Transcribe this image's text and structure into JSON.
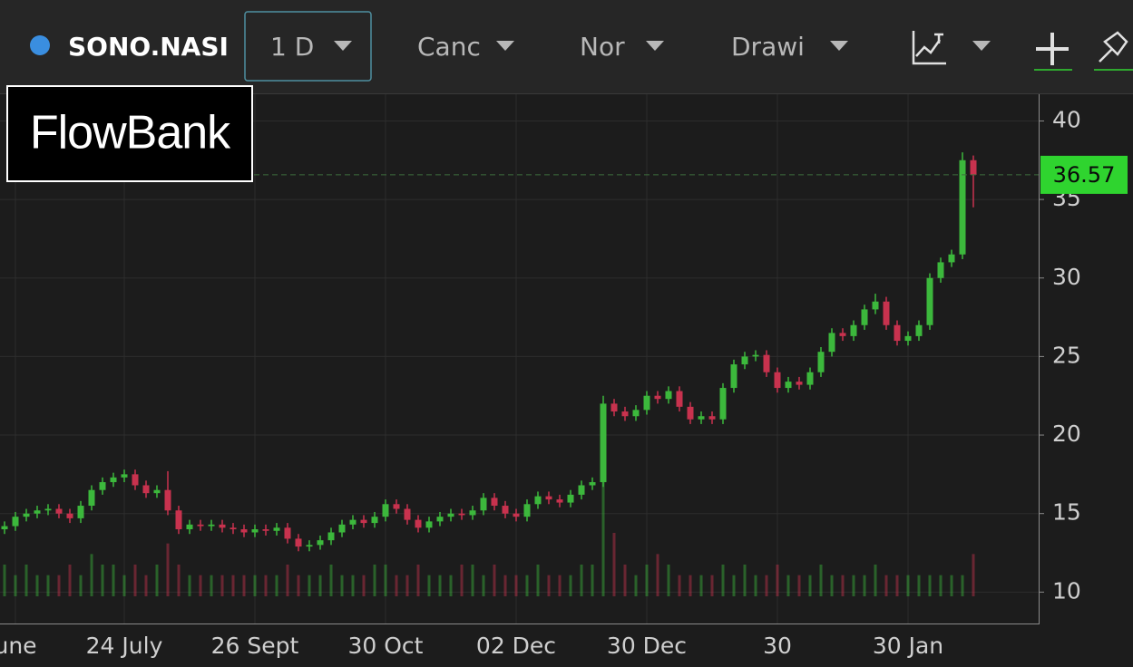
{
  "toolbar": {
    "symbol": "SONO.NASI",
    "interval": "1 D",
    "chart_style": "Canc",
    "scale_mode": "Nor",
    "drawings": "Drawi"
  },
  "logo": "FlowBank",
  "chart_data": {
    "type": "candlestick",
    "categories": [
      null,
      "une",
      null,
      null,
      null,
      null,
      null,
      null,
      null,
      null,
      null,
      "24 July",
      null,
      null,
      null,
      null,
      null,
      null,
      null,
      null,
      null,
      null,
      null,
      "26 Sept",
      null,
      null,
      null,
      null,
      null,
      null,
      null,
      null,
      null,
      null,
      null,
      "30 Oct",
      null,
      null,
      null,
      null,
      null,
      null,
      null,
      null,
      null,
      null,
      null,
      "02 Dec",
      null,
      null,
      null,
      null,
      null,
      null,
      null,
      null,
      null,
      null,
      null,
      "30 Dec",
      null,
      null,
      null,
      null,
      null,
      null,
      null,
      null,
      null,
      null,
      null,
      "30",
      null,
      null,
      null,
      null,
      null,
      null,
      null,
      null,
      null,
      null,
      null,
      "30 Jan",
      null,
      null,
      null,
      null,
      null,
      null
    ],
    "open": [
      14.0,
      14.2,
      14.8,
      15.0,
      15.2,
      15.3,
      15.0,
      14.7,
      15.5,
      16.5,
      17.0,
      17.3,
      17.5,
      16.8,
      16.3,
      16.5,
      15.2,
      14.0,
      14.3,
      14.2,
      14.3,
      14.1,
      14.0,
      13.8,
      14.0,
      13.9,
      14.1,
      13.4,
      12.9,
      13.0,
      13.3,
      13.8,
      14.3,
      14.6,
      14.4,
      14.8,
      15.6,
      15.3,
      14.6,
      14.1,
      14.5,
      14.8,
      15.0,
      14.9,
      15.2,
      16.0,
      15.5,
      15.0,
      14.8,
      15.6,
      16.1,
      15.9,
      15.7,
      16.2,
      16.8,
      17.0,
      22.0,
      21.5,
      21.2,
      21.6,
      22.5,
      22.3,
      22.8,
      21.8,
      21.0,
      21.2,
      21.0,
      23.0,
      24.5,
      25.0,
      25.1,
      24.0,
      23.0,
      23.4,
      23.2,
      24.0,
      25.3,
      26.5,
      26.3,
      27.0,
      28.0,
      28.5,
      27.0,
      26.0,
      26.3,
      27.0,
      30.0,
      31.0,
      31.5,
      37.5
    ],
    "high": [
      14.5,
      15.1,
      15.3,
      15.5,
      15.6,
      15.6,
      15.3,
      15.8,
      16.8,
      17.3,
      17.6,
      17.8,
      17.8,
      17.1,
      16.8,
      17.7,
      15.5,
      14.6,
      14.6,
      14.6,
      14.6,
      14.4,
      14.3,
      14.3,
      14.3,
      14.4,
      14.4,
      13.7,
      13.3,
      13.6,
      14.1,
      14.6,
      14.9,
      14.9,
      15.1,
      15.9,
      15.9,
      15.6,
      14.9,
      14.8,
      15.1,
      15.3,
      15.3,
      15.5,
      16.3,
      16.3,
      15.8,
      15.3,
      15.9,
      16.4,
      16.4,
      16.2,
      16.5,
      17.1,
      17.3,
      22.5,
      22.3,
      21.8,
      21.9,
      22.8,
      22.8,
      23.1,
      23.1,
      22.1,
      21.5,
      21.5,
      23.3,
      24.8,
      25.3,
      25.4,
      25.4,
      24.3,
      23.7,
      23.7,
      24.3,
      25.6,
      26.8,
      26.8,
      27.3,
      28.3,
      29.0,
      28.8,
      27.3,
      26.6,
      27.3,
      30.3,
      31.3,
      31.8,
      38.0,
      37.8
    ],
    "low": [
      13.7,
      13.9,
      14.5,
      14.7,
      14.9,
      14.7,
      14.4,
      14.4,
      15.2,
      16.2,
      16.7,
      17.0,
      16.5,
      16.0,
      16.0,
      14.9,
      13.7,
      13.7,
      13.9,
      13.9,
      13.8,
      13.7,
      13.5,
      13.5,
      13.6,
      13.6,
      13.1,
      12.6,
      12.6,
      12.7,
      13.0,
      13.5,
      14.0,
      14.1,
      14.1,
      14.5,
      15.0,
      14.3,
      13.8,
      13.8,
      14.2,
      14.5,
      14.6,
      14.6,
      14.9,
      15.2,
      14.7,
      14.5,
      14.5,
      15.3,
      15.6,
      15.4,
      15.4,
      15.9,
      16.5,
      16.7,
      21.2,
      20.9,
      20.9,
      21.3,
      22.0,
      22.0,
      21.5,
      20.7,
      20.7,
      20.7,
      20.7,
      22.7,
      24.2,
      24.7,
      23.7,
      22.7,
      22.7,
      22.9,
      22.9,
      23.7,
      25.0,
      26.0,
      26.0,
      26.7,
      27.7,
      26.7,
      25.7,
      25.7,
      26.0,
      26.7,
      29.7,
      30.7,
      31.2,
      34.5
    ],
    "close": [
      14.2,
      14.8,
      15.0,
      15.2,
      15.3,
      15.0,
      14.7,
      15.5,
      16.5,
      17.0,
      17.3,
      17.5,
      16.8,
      16.3,
      16.5,
      15.2,
      14.0,
      14.3,
      14.2,
      14.3,
      14.1,
      14.0,
      13.8,
      14.0,
      13.9,
      14.1,
      13.4,
      12.9,
      13.0,
      13.3,
      13.8,
      14.3,
      14.6,
      14.4,
      14.8,
      15.6,
      15.3,
      14.6,
      14.1,
      14.5,
      14.8,
      15.0,
      14.9,
      15.2,
      16.0,
      15.5,
      15.0,
      14.8,
      15.6,
      16.1,
      15.9,
      15.7,
      16.2,
      16.8,
      17.0,
      22.0,
      21.5,
      21.2,
      21.6,
      22.5,
      22.3,
      22.8,
      21.8,
      21.0,
      21.2,
      21.0,
      23.0,
      24.5,
      25.0,
      25.1,
      24.0,
      23.0,
      23.4,
      23.2,
      24.0,
      25.3,
      26.5,
      26.3,
      27.0,
      28.0,
      28.5,
      27.0,
      26.0,
      26.3,
      27.0,
      30.0,
      31.0,
      31.5,
      37.5,
      36.57
    ],
    "volume": [
      3,
      2,
      3,
      2,
      2,
      2,
      3,
      2,
      4,
      3,
      3,
      2,
      3,
      2,
      3,
      5,
      3,
      2,
      2,
      2,
      2,
      2,
      2,
      2,
      2,
      2,
      3,
      2,
      2,
      2,
      3,
      2,
      2,
      2,
      3,
      3,
      2,
      2,
      3,
      2,
      2,
      2,
      3,
      3,
      2,
      3,
      2,
      2,
      2,
      3,
      2,
      2,
      2,
      3,
      3,
      12,
      6,
      3,
      2,
      3,
      4,
      3,
      2,
      2,
      2,
      2,
      3,
      2,
      3,
      2,
      2,
      3,
      2,
      2,
      2,
      3,
      2,
      2,
      2,
      2,
      3,
      2,
      2,
      2,
      2,
      2,
      2,
      2,
      2,
      4
    ],
    "up_color": "#3cb83c",
    "down_color": "#c8324e",
    "last_price": 36.57,
    "last_price_color": "#2fd42f",
    "ylim": [
      8,
      41.7
    ],
    "yticks": [
      10,
      15,
      20,
      25,
      30,
      35,
      40
    ],
    "grid": true
  }
}
